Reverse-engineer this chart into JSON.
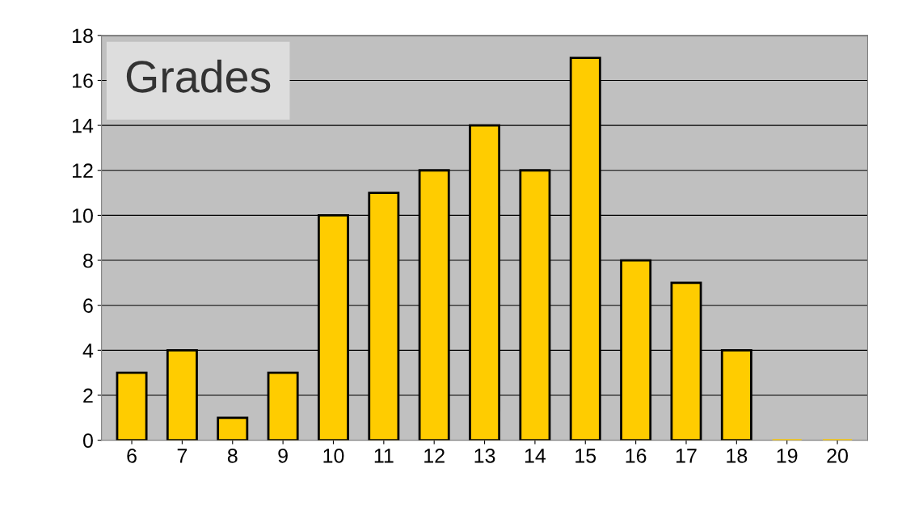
{
  "chart_data": {
    "type": "bar",
    "title": "Grades",
    "categories": [
      "6",
      "7",
      "8",
      "9",
      "10",
      "11",
      "12",
      "13",
      "14",
      "15",
      "16",
      "17",
      "18",
      "19",
      "20"
    ],
    "values": [
      3,
      4,
      1,
      3,
      10,
      11,
      12,
      14,
      12,
      17,
      8,
      7,
      4,
      0,
      0
    ],
    "color": "#ffcc00",
    "ylim": [
      0,
      18
    ],
    "yticks": [
      0,
      2,
      4,
      6,
      8,
      10,
      12,
      14,
      16,
      18
    ],
    "grid": "y"
  }
}
